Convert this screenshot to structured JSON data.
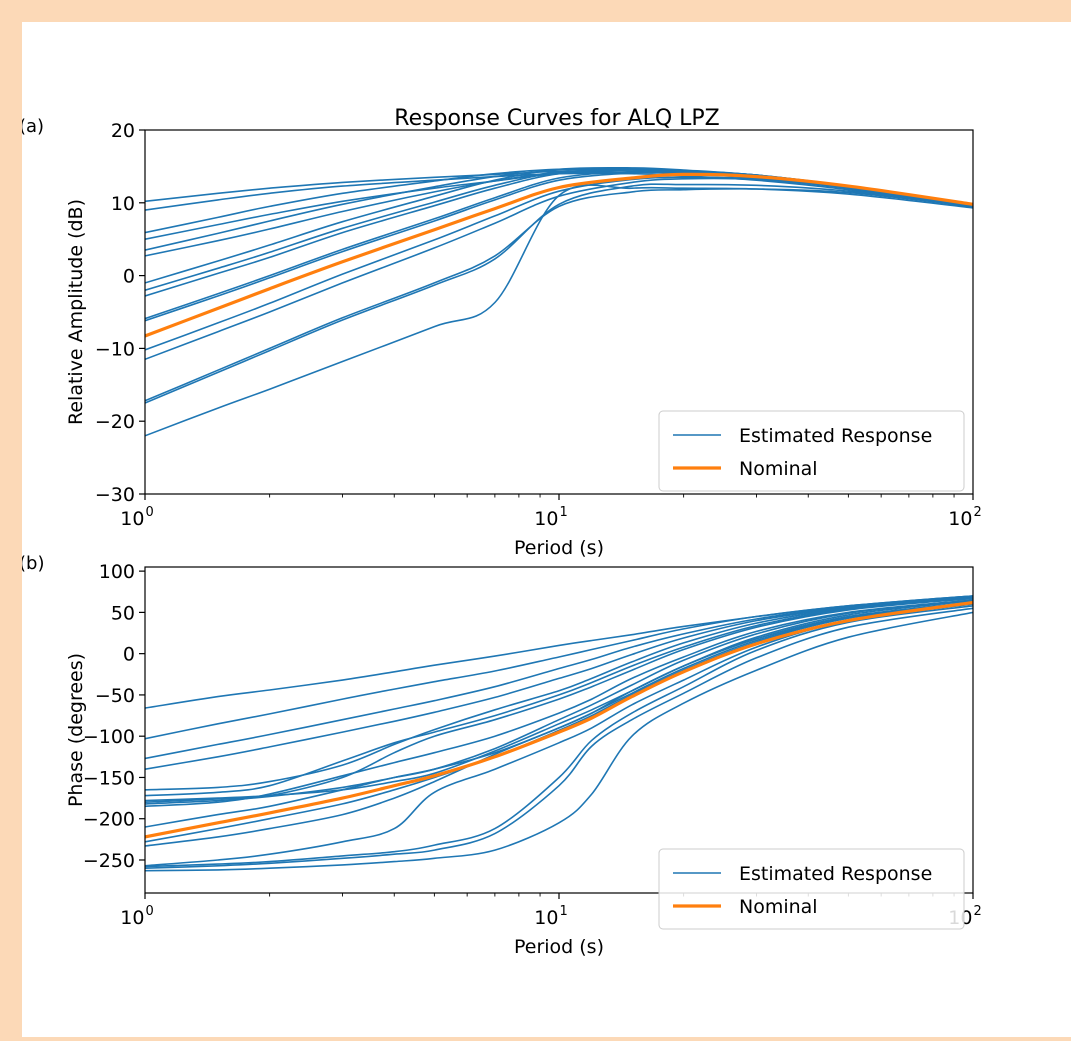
{
  "figure": {
    "title": "Response Curves for ALQ LPZ",
    "panel_a_label": "(a)",
    "panel_b_label": "(b)"
  },
  "chart_data": [
    {
      "type": "line",
      "panel": "(a)",
      "title": "Response Curves for ALQ LPZ",
      "xlabel": "Period (s)",
      "ylabel": "Relative Amplitude (dB)",
      "xscale": "log",
      "xlim": [
        1,
        100
      ],
      "ylim": [
        -30,
        20
      ],
      "xticks": [
        1,
        10,
        100
      ],
      "xtick_labels": [
        {
          "base": "10",
          "exp": "0"
        },
        {
          "base": "10",
          "exp": "1"
        },
        {
          "base": "10",
          "exp": "2"
        }
      ],
      "yticks": [
        20,
        10,
        0,
        -10,
        -20,
        -30
      ],
      "ytick_labels": [
        "20",
        "10",
        "0",
        "−10",
        "−20",
        "−30"
      ],
      "grid": false,
      "legend": {
        "position": "lower-right",
        "entries": [
          {
            "label": "Estimated Response",
            "color": "#1f77b4"
          },
          {
            "label": "Nominal",
            "color": "#ff7f0e"
          }
        ]
      },
      "x": [
        1,
        1.5,
        2,
        3,
        5,
        7,
        10,
        15,
        20,
        30,
        50,
        100
      ],
      "series": [
        {
          "name": "Nominal",
          "color": "#ff7f0e",
          "values": [
            -8.3,
            -4.5,
            -1.8,
            1.9,
            6.3,
            9.2,
            12.1,
            13.4,
            13.9,
            13.6,
            12.3,
            9.8
          ]
        },
        {
          "name": "Estimated Response",
          "color": "#1f77b4",
          "values": [
            [
              10.2,
              11.3,
              12.0,
              12.8,
              13.5,
              13.9,
              14.3,
              14.2,
              14.0,
              13.4,
              12.0,
              9.5
            ],
            [
              9.0,
              10.4,
              11.3,
              12.3,
              13.1,
              13.6,
              14.0,
              14.0,
              13.7,
              13.1,
              11.8,
              9.4
            ],
            [
              5.9,
              8.0,
              9.5,
              11.3,
              13.0,
              14.0,
              14.6,
              14.5,
              14.2,
              13.5,
              12.0,
              9.5
            ],
            [
              5.0,
              7.0,
              8.4,
              10.2,
              12.0,
              13.0,
              14.0,
              14.2,
              14.1,
              13.6,
              12.2,
              9.6
            ],
            [
              3.5,
              5.8,
              7.5,
              9.8,
              12.2,
              13.6,
              14.5,
              14.6,
              14.3,
              13.6,
              12.1,
              9.6
            ],
            [
              2.7,
              4.8,
              6.4,
              8.8,
              11.5,
              13.0,
              14.2,
              14.5,
              14.3,
              13.7,
              12.2,
              9.6
            ],
            [
              -1.0,
              2.0,
              4.2,
              7.4,
              10.9,
              13.1,
              14.6,
              14.8,
              14.5,
              13.8,
              12.3,
              9.7
            ],
            [
              -2.0,
              1.0,
              3.2,
              6.5,
              10.1,
              12.4,
              14.2,
              14.6,
              14.4,
              13.8,
              12.3,
              9.7
            ],
            [
              -2.8,
              0.3,
              2.5,
              5.9,
              9.6,
              12.0,
              14.0,
              14.5,
              14.4,
              13.8,
              12.3,
              9.7
            ],
            [
              -5.9,
              -2.5,
              0.0,
              3.6,
              7.8,
              10.7,
              13.4,
              14.3,
              14.3,
              13.8,
              12.3,
              9.7
            ],
            [
              -6.2,
              -2.8,
              -0.3,
              3.3,
              7.5,
              10.4,
              13.1,
              14.1,
              14.1,
              13.6,
              12.2,
              9.6
            ],
            [
              -10.2,
              -6.5,
              -3.8,
              0.2,
              4.9,
              8.2,
              11.6,
              13.2,
              13.5,
              13.3,
              12.1,
              9.6
            ],
            [
              -11.5,
              -7.7,
              -5.0,
              -1.0,
              3.8,
              7.2,
              10.9,
              12.8,
              13.3,
              13.2,
              12.0,
              9.6
            ],
            [
              -17.2,
              -13.0,
              -10.0,
              -5.8,
              -1.0,
              2.7,
              9.5,
              11.5,
              11.8,
              11.9,
              11.4,
              9.5
            ],
            [
              -17.5,
              -13.3,
              -10.3,
              -6.1,
              -1.3,
              2.3,
              9.8,
              12.3,
              12.5,
              12.4,
              11.6,
              9.5
            ],
            [
              -22.0,
              -18.2,
              -15.6,
              -11.8,
              -7.0,
              -3.7,
              11.0,
              12.0,
              12.0,
              11.9,
              11.2,
              9.3
            ]
          ]
        }
      ]
    },
    {
      "type": "line",
      "panel": "(b)",
      "title": "",
      "xlabel": "Period (s)",
      "ylabel": "Phase (degrees)",
      "xscale": "log",
      "xlim": [
        1,
        100
      ],
      "ylim": [
        -290,
        105
      ],
      "xticks": [
        1,
        10,
        100
      ],
      "xtick_labels": [
        {
          "base": "10",
          "exp": "0"
        },
        {
          "base": "10",
          "exp": "1"
        },
        {
          "base": "10",
          "exp": "2"
        }
      ],
      "yticks": [
        100,
        50,
        0,
        -50,
        -100,
        -150,
        -200,
        -250
      ],
      "ytick_labels": [
        "100",
        "50",
        "0",
        "−50",
        "−100",
        "−150",
        "−200",
        "−250"
      ],
      "grid": false,
      "legend": {
        "position": "lower-right",
        "entries": [
          {
            "label": "Estimated Response",
            "color": "#1f77b4"
          },
          {
            "label": "Nominal",
            "color": "#ff7f0e"
          }
        ]
      },
      "x": [
        1,
        1.5,
        2,
        3,
        4,
        5,
        7,
        10,
        12,
        15,
        20,
        30,
        50,
        100
      ],
      "series": [
        {
          "name": "Nominal",
          "color": "#ff7f0e",
          "values": [
            -222,
            -205,
            -193,
            -175,
            -160,
            -148,
            -125,
            -95,
            -78,
            -52,
            -22,
            12,
            40,
            62
          ]
        },
        {
          "name": "Estimated Response",
          "color": "#1f77b4",
          "values": [
            [
              -66,
              -52,
              -44,
              -32,
              -22,
              -14,
              -3,
              10,
              16,
              23,
              33,
              45,
              58,
              70
            ],
            [
              -103,
              -85,
              -73,
              -55,
              -43,
              -34,
              -21,
              -4,
              5,
              16,
              30,
              45,
              58,
              70
            ],
            [
              -127,
              -110,
              -98,
              -80,
              -67,
              -57,
              -40,
              -18,
              -7,
              8,
              24,
              42,
              57,
              69
            ],
            [
              -140,
              -125,
              -113,
              -95,
              -82,
              -71,
              -53,
              -30,
              -18,
              -1,
              19,
              40,
              56,
              68
            ],
            [
              -165,
              -162,
              -155,
              -135,
              -110,
              -92,
              -68,
              -45,
              -30,
              -10,
              13,
              37,
              55,
              68
            ],
            [
              -172,
              -168,
              -160,
              -130,
              -108,
              -95,
              -75,
              -50,
              -35,
              -15,
              8,
              34,
              54,
              67
            ],
            [
              -180,
              -176,
              -172,
              -150,
              -120,
              -100,
              -80,
              -55,
              -40,
              -20,
              5,
              32,
              53,
              67
            ],
            [
              -185,
              -180,
              -170,
              -148,
              -132,
              -120,
              -100,
              -72,
              -55,
              -30,
              -4,
              27,
              50,
              65
            ],
            [
              -178,
              -175,
              -172,
              -165,
              -155,
              -145,
              -118,
              -85,
              -68,
              -45,
              -15,
              20,
              47,
              64
            ],
            [
              -182,
              -178,
              -173,
              -162,
              -150,
              -140,
              -115,
              -80,
              -62,
              -38,
              -8,
              24,
              49,
              65
            ],
            [
              -210,
              -195,
              -185,
              -165,
              -150,
              -140,
              -120,
              -90,
              -72,
              -48,
              -18,
              16,
              44,
              62
            ],
            [
              -228,
              -212,
              -200,
              -182,
              -165,
              -150,
              -125,
              -93,
              -75,
              -50,
              -20,
              14,
              43,
              61
            ],
            [
              -233,
              -222,
              -212,
              -195,
              -175,
              -155,
              -122,
              -90,
              -72,
              -45,
              -15,
              18,
              45,
              62
            ],
            [
              -257,
              -250,
              -243,
              -228,
              -212,
              -168,
              -140,
              -108,
              -90,
              -62,
              -32,
              8,
              40,
              60
            ],
            [
              -258,
              -255,
              -252,
              -245,
              -240,
              -232,
              -212,
              -150,
              -105,
              -72,
              -40,
              4,
              38,
              58
            ],
            [
              -260,
              -257,
              -254,
              -248,
              -243,
              -238,
              -218,
              -160,
              -112,
              -80,
              -48,
              -5,
              32,
              55
            ],
            [
              -263,
              -262,
              -260,
              -256,
              -252,
              -248,
              -238,
              -205,
              -170,
              -100,
              -60,
              -20,
              20,
              50
            ]
          ]
        }
      ]
    }
  ]
}
